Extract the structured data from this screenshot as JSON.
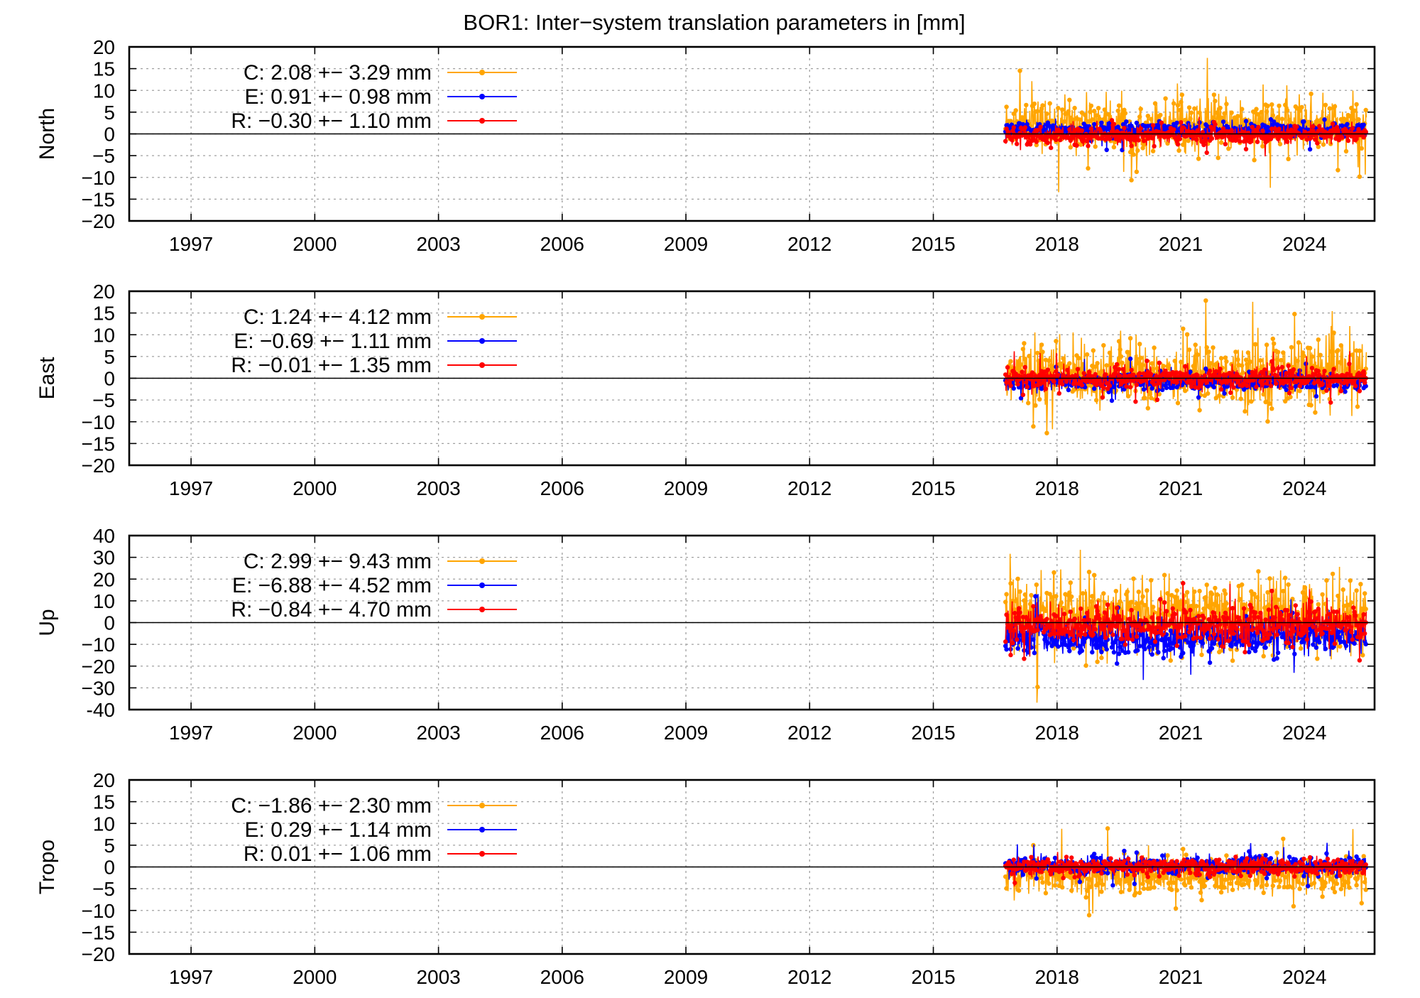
{
  "chart_data": {
    "type": "line",
    "title": "BOR1: Inter−system translation parameters in [mm]",
    "xlim": [
      1995.5,
      2025.7
    ],
    "x_ticks": [
      1997,
      2000,
      2003,
      2006,
      2009,
      2012,
      2015,
      2018,
      2021,
      2024
    ],
    "x_tick_labels": [
      "1997",
      "2000",
      "2003",
      "2006",
      "2009",
      "2012",
      "2015",
      "2018",
      "2021",
      "2024"
    ],
    "data_start": 2016.75,
    "data_end": 2025.5,
    "colors": {
      "C": "#ffa500",
      "E": "#0000ff",
      "R": "#ff0000"
    },
    "panels": [
      {
        "ylabel": "North",
        "ylim": [
          -20,
          20
        ],
        "y_ticks": [
          -20,
          -15,
          -10,
          -5,
          0,
          5,
          10,
          15,
          20
        ],
        "y_tick_labels": [
          "−20",
          "−15",
          "−10",
          "−5",
          "0",
          "5",
          "10",
          "15",
          "20"
        ],
        "series": [
          {
            "name": "C",
            "legend": "C:   2.08 +− 3.29 mm",
            "mean": 2.08,
            "std": 3.29
          },
          {
            "name": "E",
            "legend": "E:   0.91 +− 0.98 mm",
            "mean": 0.91,
            "std": 0.98
          },
          {
            "name": "R",
            "legend": "R:  −0.30 +− 1.10 mm",
            "mean": -0.3,
            "std": 1.1
          }
        ]
      },
      {
        "ylabel": "East",
        "ylim": [
          -20,
          20
        ],
        "y_ticks": [
          -20,
          -15,
          -10,
          -5,
          0,
          5,
          10,
          15,
          20
        ],
        "y_tick_labels": [
          "−20",
          "−15",
          "−10",
          "−5",
          "0",
          "5",
          "10",
          "15",
          "20"
        ],
        "series": [
          {
            "name": "C",
            "legend": "C:   1.24 +− 4.12 mm",
            "mean": 1.24,
            "std": 4.12
          },
          {
            "name": "E",
            "legend": "E:  −0.69 +− 1.11 mm",
            "mean": -0.69,
            "std": 1.11
          },
          {
            "name": "R",
            "legend": "R:  −0.01 +− 1.35 mm",
            "mean": -0.01,
            "std": 1.35
          }
        ]
      },
      {
        "ylabel": "Up",
        "ylim": [
          -40,
          40
        ],
        "y_ticks": [
          -40,
          -30,
          -20,
          -10,
          0,
          10,
          20,
          30,
          40
        ],
        "y_tick_labels": [
          "-40",
          "−30",
          "−20",
          "−10",
          "0",
          "10",
          "20",
          "30",
          "40"
        ],
        "series": [
          {
            "name": "C",
            "legend": "C:   2.99 +− 9.43 mm",
            "mean": 2.99,
            "std": 9.43
          },
          {
            "name": "E",
            "legend": "E:  −6.88 +− 4.52 mm",
            "mean": -6.88,
            "std": 4.52
          },
          {
            "name": "R",
            "legend": "R:  −0.84 +− 4.70 mm",
            "mean": -0.84,
            "std": 4.7
          }
        ]
      },
      {
        "ylabel": "Tropo",
        "ylim": [
          -20,
          20
        ],
        "y_ticks": [
          -20,
          -15,
          -10,
          -5,
          0,
          5,
          10,
          15,
          20
        ],
        "y_tick_labels": [
          "−20",
          "−15",
          "−10",
          "−5",
          "0",
          "5",
          "10",
          "15",
          "20"
        ],
        "series": [
          {
            "name": "C",
            "legend": "C:  −1.86 +− 2.30 mm",
            "mean": -1.86,
            "std": 2.3
          },
          {
            "name": "E",
            "legend": "E:   0.29 +− 1.14 mm",
            "mean": 0.29,
            "std": 1.14
          },
          {
            "name": "R",
            "legend": "R:   0.01 +− 1.06 mm",
            "mean": 0.01,
            "std": 1.06
          }
        ]
      }
    ]
  }
}
